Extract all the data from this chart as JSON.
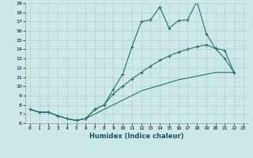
{
  "title": "",
  "xlabel": "Humidex (Indice chaleur)",
  "ylabel": "",
  "background_color": "#cce8e8",
  "grid_color": "#b0d0d0",
  "line_color": "#267070",
  "xlim": [
    -0.5,
    23.5
  ],
  "ylim": [
    6,
    19
  ],
  "xticks": [
    0,
    1,
    2,
    3,
    4,
    5,
    6,
    7,
    8,
    9,
    10,
    11,
    12,
    13,
    14,
    15,
    16,
    17,
    18,
    19,
    20,
    21,
    22,
    23
  ],
  "yticks": [
    6,
    7,
    8,
    9,
    10,
    11,
    12,
    13,
    14,
    15,
    16,
    17,
    18,
    19
  ],
  "xs1": [
    0,
    1,
    2,
    3,
    4,
    5,
    6,
    7,
    8,
    9,
    10,
    11,
    12,
    13,
    14,
    15,
    16,
    17,
    18,
    19,
    20,
    21,
    22
  ],
  "ys1": [
    7.5,
    7.2,
    7.2,
    6.8,
    6.5,
    6.3,
    6.5,
    7.5,
    8.0,
    9.7,
    11.3,
    14.3,
    17.0,
    17.2,
    18.6,
    16.3,
    17.1,
    17.2,
    19.2,
    15.7,
    14.1,
    13.9,
    11.5
  ],
  "xs2": [
    0,
    1,
    2,
    3,
    4,
    5,
    6,
    7,
    8,
    9,
    10,
    11,
    12,
    13,
    14,
    15,
    16,
    17,
    18,
    19,
    20,
    21,
    22
  ],
  "ys2": [
    7.5,
    7.2,
    7.2,
    6.8,
    6.5,
    6.3,
    6.5,
    7.5,
    8.0,
    9.2,
    10.0,
    10.8,
    11.5,
    12.2,
    12.8,
    13.3,
    13.7,
    14.0,
    14.3,
    14.5,
    14.1,
    13.0,
    11.5
  ],
  "xs3": [
    0,
    1,
    2,
    3,
    4,
    5,
    6,
    7,
    8,
    9,
    10,
    11,
    12,
    13,
    14,
    15,
    16,
    17,
    18,
    19,
    20,
    21,
    22
  ],
  "ys3": [
    7.5,
    7.2,
    7.2,
    6.8,
    6.5,
    6.3,
    6.5,
    7.0,
    7.5,
    8.0,
    8.5,
    9.0,
    9.5,
    9.8,
    10.1,
    10.4,
    10.7,
    10.9,
    11.1,
    11.3,
    11.5,
    11.5,
    11.5
  ]
}
